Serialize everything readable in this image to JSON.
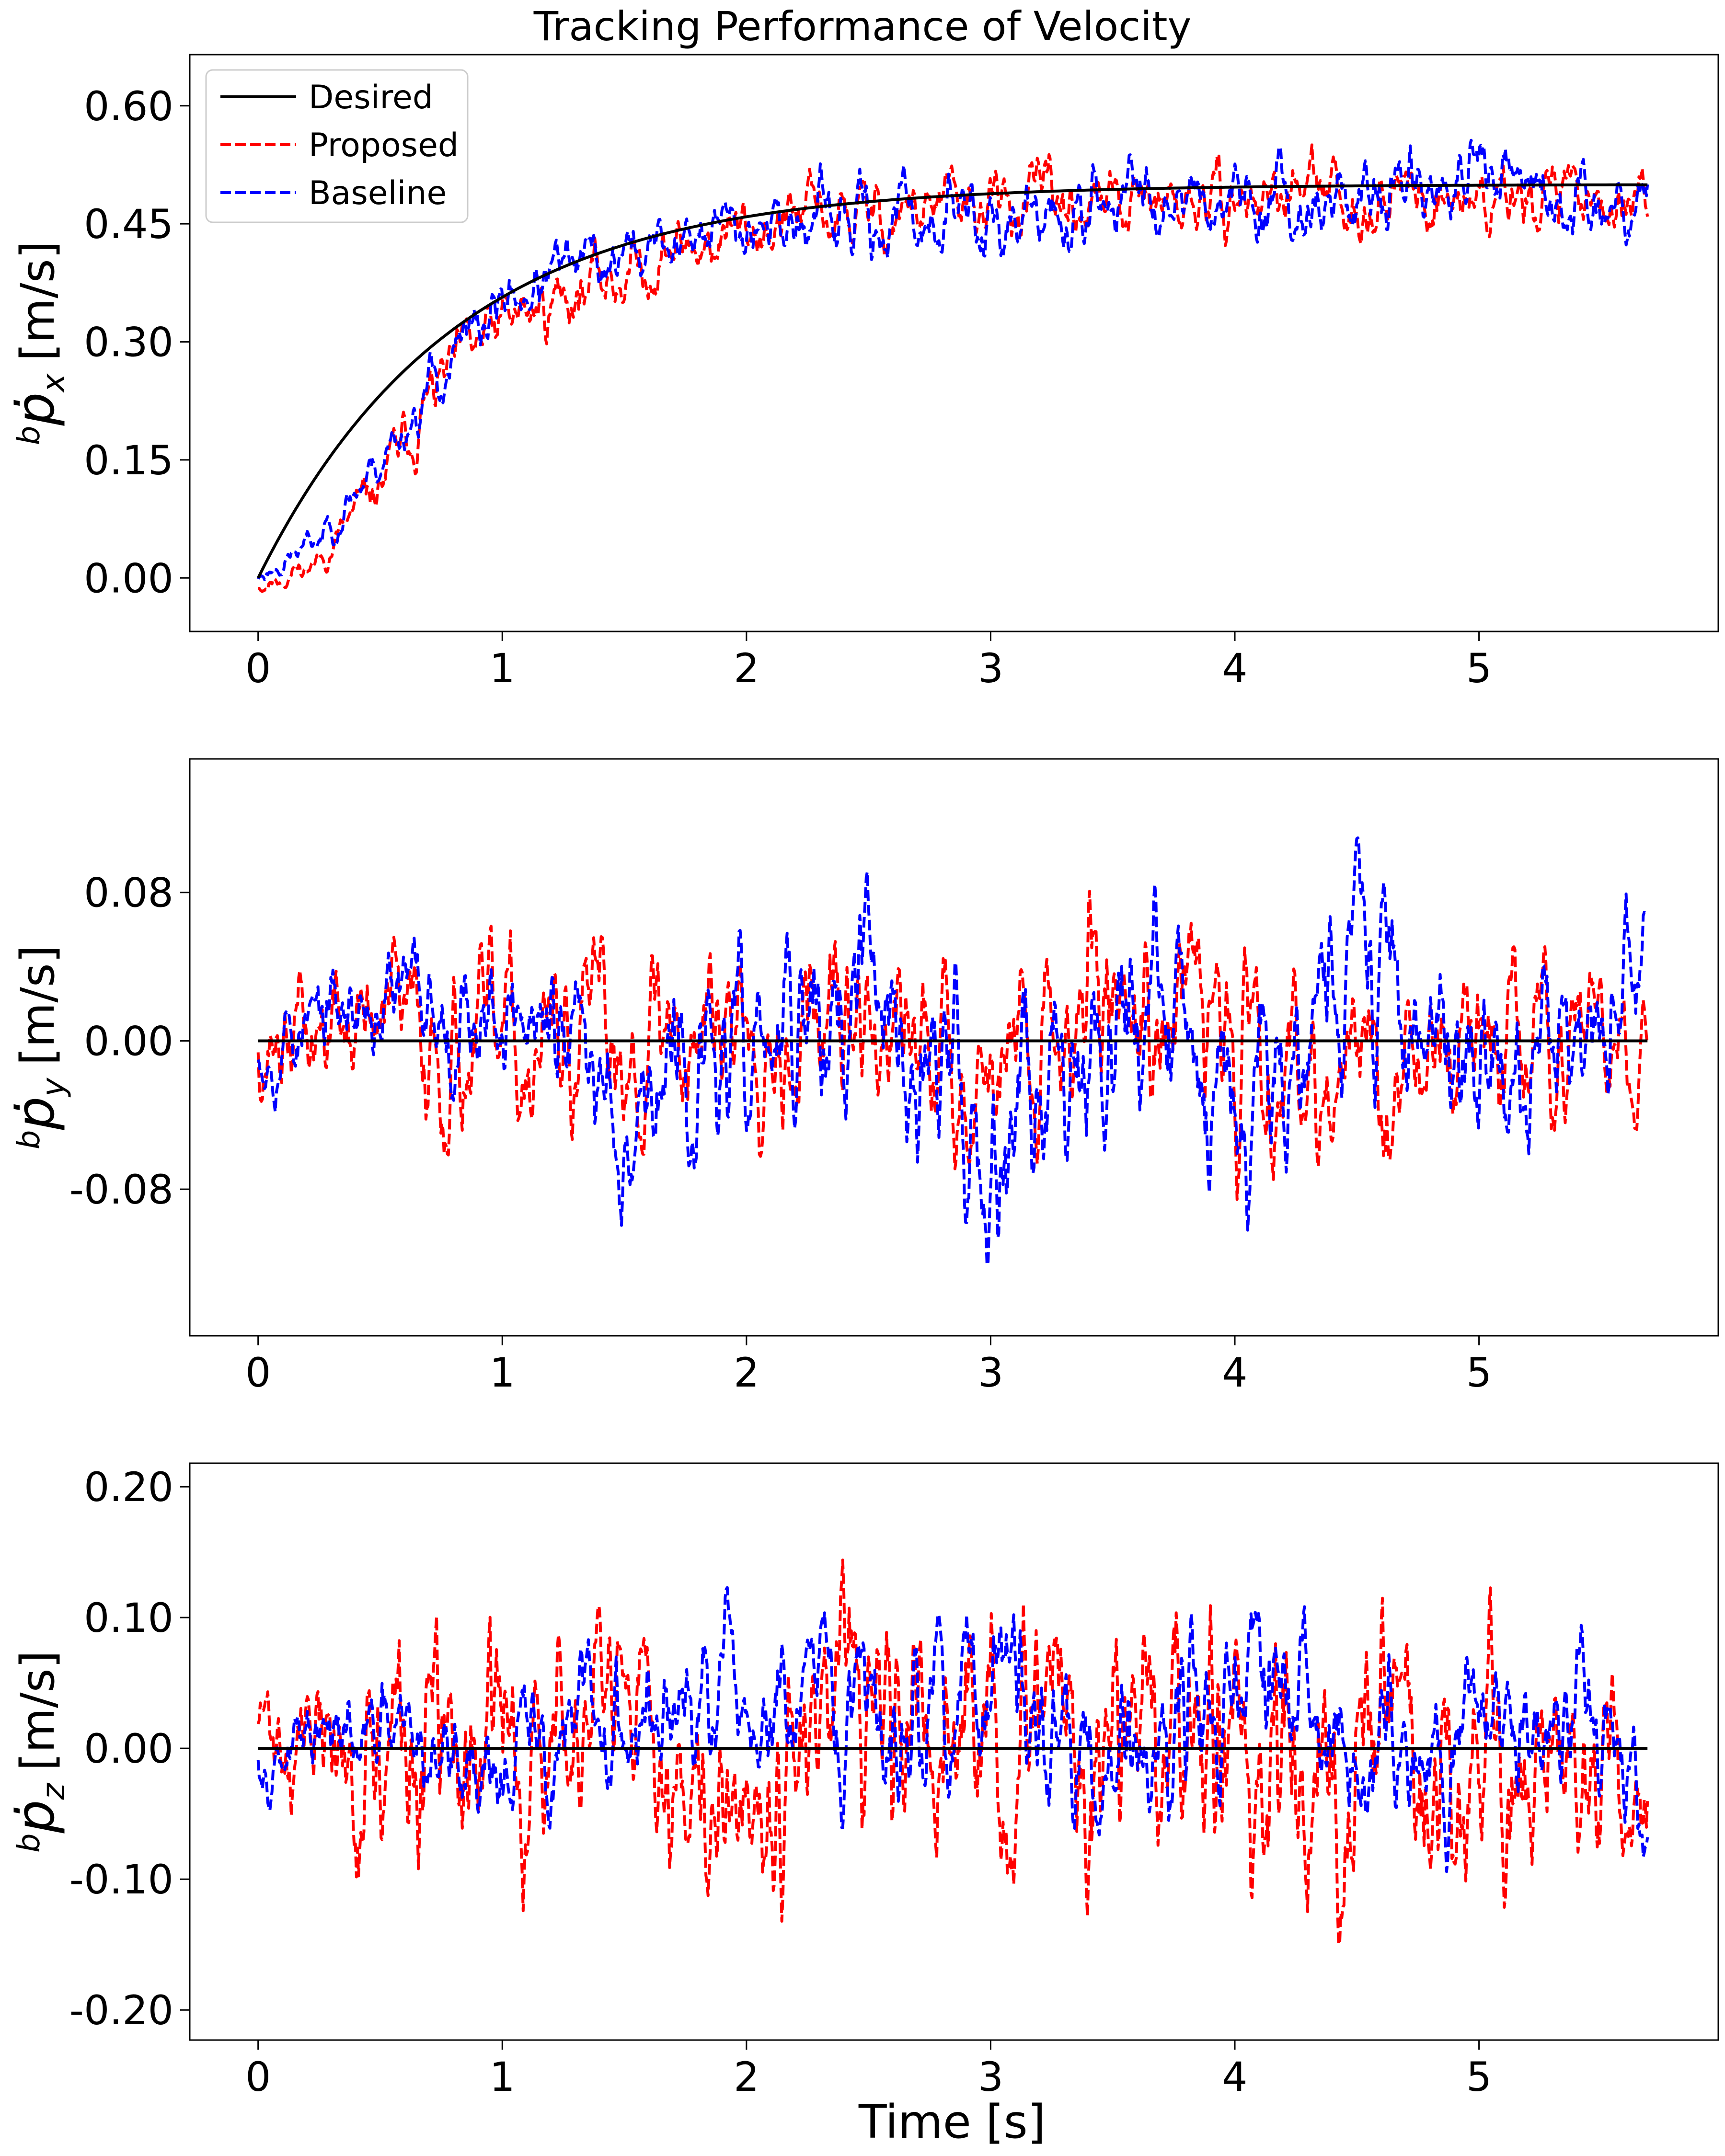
{
  "figure_title": "Tracking Performance of Velocity",
  "legend": {
    "entries": [
      {
        "label": "Desired",
        "color": "#000000",
        "style": "solid"
      },
      {
        "label": "Proposed",
        "color": "#ff0000",
        "style": "dashed"
      },
      {
        "label": "Baseline",
        "color": "#0000ff",
        "style": "dashed"
      }
    ]
  },
  "xlabel": "Time [s]",
  "colors": {
    "desired": "#000000",
    "proposed": "#ff0000",
    "baseline": "#0000ff",
    "frame": "#000000",
    "background": "#ffffff"
  },
  "chart_data": [
    {
      "type": "line",
      "panel": "top",
      "ylabel": {
        "superscript": "b",
        "symbol": "ṗ",
        "subscript": "x",
        "unit": "[m/s]"
      },
      "xlim": [
        -0.28,
        5.98
      ],
      "ylim": [
        -0.068,
        0.665
      ],
      "xticks": [
        0,
        1,
        2,
        3,
        4,
        5
      ],
      "xtick_labels": [
        "0",
        "1",
        "2",
        "3",
        "4",
        "5"
      ],
      "yticks": [
        0.0,
        0.15,
        0.3,
        0.45,
        0.6
      ],
      "ytick_labels": [
        "0.00",
        "0.15",
        "0.30",
        "0.45",
        "0.60"
      ],
      "x_end": 5.69,
      "series": [
        {
          "name": "Desired",
          "kind": "curve",
          "model": "0.5*(1-exp(-t/0.8))",
          "color": "#000000"
        },
        {
          "name": "Proposed",
          "kind": "noisy",
          "color": "#ff0000",
          "x": [
            0,
            0.25,
            0.5,
            0.75,
            1.0,
            1.25,
            1.5,
            1.75,
            2.0,
            2.25,
            2.5,
            2.75,
            3.0,
            3.25,
            3.5,
            3.75,
            4.0,
            4.25,
            4.5,
            4.75,
            5.0,
            5.25,
            5.5,
            5.69
          ],
          "trend": [
            -0.01,
            0.02,
            0.12,
            0.25,
            0.32,
            0.36,
            0.39,
            0.42,
            0.44,
            0.46,
            0.46,
            0.47,
            0.47,
            0.48,
            0.47,
            0.47,
            0.48,
            0.49,
            0.48,
            0.49,
            0.48,
            0.49,
            0.49,
            0.45
          ],
          "amplitude": [
            0.015,
            0.02,
            0.04,
            0.05,
            0.05,
            0.05,
            0.05,
            0.05,
            0.05,
            0.05,
            0.05,
            0.05,
            0.05,
            0.05,
            0.05,
            0.05,
            0.05,
            0.05,
            0.05,
            0.05,
            0.05,
            0.05,
            0.05,
            0.04
          ],
          "seed": 11
        },
        {
          "name": "Baseline",
          "kind": "noisy",
          "color": "#0000ff",
          "x": [
            0,
            0.25,
            0.5,
            0.75,
            1.0,
            1.25,
            1.5,
            1.75,
            2.0,
            2.25,
            2.5,
            2.75,
            3.0,
            3.25,
            3.5,
            3.75,
            4.0,
            4.25,
            4.5,
            4.75,
            5.0,
            5.25,
            5.5,
            5.69
          ],
          "trend": [
            0.0,
            0.05,
            0.15,
            0.26,
            0.35,
            0.39,
            0.41,
            0.43,
            0.46,
            0.45,
            0.45,
            0.46,
            0.46,
            0.45,
            0.48,
            0.5,
            0.49,
            0.48,
            0.48,
            0.5,
            0.5,
            0.49,
            0.48,
            0.5
          ],
          "amplitude": [
            0.01,
            0.02,
            0.03,
            0.04,
            0.04,
            0.04,
            0.04,
            0.04,
            0.04,
            0.05,
            0.05,
            0.05,
            0.05,
            0.05,
            0.05,
            0.05,
            0.05,
            0.05,
            0.05,
            0.05,
            0.05,
            0.05,
            0.05,
            0.04
          ],
          "seed": 23
        }
      ]
    },
    {
      "type": "line",
      "panel": "middle",
      "ylabel": {
        "superscript": "b",
        "symbol": "ṗ",
        "subscript": "y",
        "unit": "[m/s]"
      },
      "xlim": [
        -0.28,
        5.98
      ],
      "ylim": [
        -0.159,
        0.152
      ],
      "xticks": [
        0,
        1,
        2,
        3,
        4,
        5
      ],
      "xtick_labels": [
        "0",
        "1",
        "2",
        "3",
        "4",
        "5"
      ],
      "yticks": [
        -0.08,
        0.0,
        0.08
      ],
      "ytick_labels": [
        "-0.08",
        "0.00",
        "0.08"
      ],
      "x_end": 5.69,
      "series": [
        {
          "name": "Desired",
          "kind": "constant",
          "value": 0.0,
          "color": "#000000"
        },
        {
          "name": "Proposed",
          "kind": "noisy",
          "color": "#ff0000",
          "x": [
            0,
            0.5,
            1.0,
            1.5,
            2.0,
            2.5,
            3.0,
            3.5,
            4.0,
            4.5,
            5.0,
            5.5,
            5.69
          ],
          "trend": [
            0.0,
            0.01,
            -0.01,
            0.0,
            0.02,
            0.0,
            -0.01,
            0.03,
            0.01,
            -0.02,
            0.0,
            0.0,
            -0.01
          ],
          "amplitude": [
            0.035,
            0.045,
            0.05,
            0.05,
            0.05,
            0.05,
            0.05,
            0.055,
            0.06,
            0.05,
            0.05,
            0.04,
            0.03
          ],
          "seed": 37
        },
        {
          "name": "Baseline",
          "kind": "noisy",
          "color": "#0000ff",
          "x": [
            0,
            0.5,
            1.0,
            1.5,
            2.0,
            2.5,
            3.0,
            3.5,
            4.0,
            4.5,
            5.0,
            5.5,
            5.69
          ],
          "trend": [
            0.0,
            0.02,
            0.02,
            -0.03,
            -0.01,
            0.02,
            -0.05,
            0.03,
            -0.02,
            0.05,
            -0.02,
            0.0,
            0.05
          ],
          "amplitude": [
            0.025,
            0.03,
            0.04,
            0.05,
            0.05,
            0.06,
            0.06,
            0.06,
            0.06,
            0.06,
            0.05,
            0.05,
            0.03
          ],
          "seed": 53
        }
      ]
    },
    {
      "type": "line",
      "panel": "bottom",
      "ylabel": {
        "superscript": "b",
        "symbol": "ṗ",
        "subscript": "z",
        "unit": "[m/s]"
      },
      "xlim": [
        -0.28,
        5.98
      ],
      "ylim": [
        -0.223,
        0.218
      ],
      "xticks": [
        0,
        1,
        2,
        3,
        4,
        5
      ],
      "xtick_labels": [
        "0",
        "1",
        "2",
        "3",
        "4",
        "5"
      ],
      "yticks": [
        -0.2,
        -0.1,
        0.0,
        0.1,
        0.2
      ],
      "ytick_labels": [
        "-0.20",
        "-0.10",
        "0.00",
        "0.10",
        "0.20"
      ],
      "x_end": 5.69,
      "series": [
        {
          "name": "Desired",
          "kind": "constant",
          "value": 0.0,
          "color": "#000000"
        },
        {
          "name": "Proposed",
          "kind": "noisy",
          "color": "#ff0000",
          "x": [
            0,
            0.5,
            1.0,
            1.5,
            2.0,
            2.5,
            3.0,
            3.5,
            4.0,
            4.5,
            5.0,
            5.5,
            5.69
          ],
          "trend": [
            0.02,
            -0.02,
            0.0,
            0.0,
            0.0,
            0.0,
            0.0,
            0.0,
            0.0,
            0.0,
            0.0,
            0.0,
            -0.03
          ],
          "amplitude": [
            0.04,
            0.09,
            0.09,
            0.08,
            0.09,
            0.09,
            0.1,
            0.1,
            0.11,
            0.1,
            0.09,
            0.09,
            0.06
          ],
          "seed": 71
        },
        {
          "name": "Baseline",
          "kind": "noisy",
          "color": "#0000ff",
          "x": [
            0,
            0.5,
            1.0,
            1.5,
            2.0,
            2.5,
            3.0,
            3.5,
            4.0,
            4.5,
            5.0,
            5.5,
            5.69
          ],
          "trend": [
            0.0,
            0.0,
            -0.01,
            0.02,
            0.02,
            0.02,
            0.05,
            -0.01,
            0.05,
            0.0,
            0.03,
            0.02,
            -0.05
          ],
          "amplitude": [
            0.03,
            0.05,
            0.06,
            0.07,
            0.08,
            0.08,
            0.08,
            0.08,
            0.09,
            0.08,
            0.07,
            0.07,
            0.05
          ],
          "seed": 97
        }
      ]
    }
  ]
}
